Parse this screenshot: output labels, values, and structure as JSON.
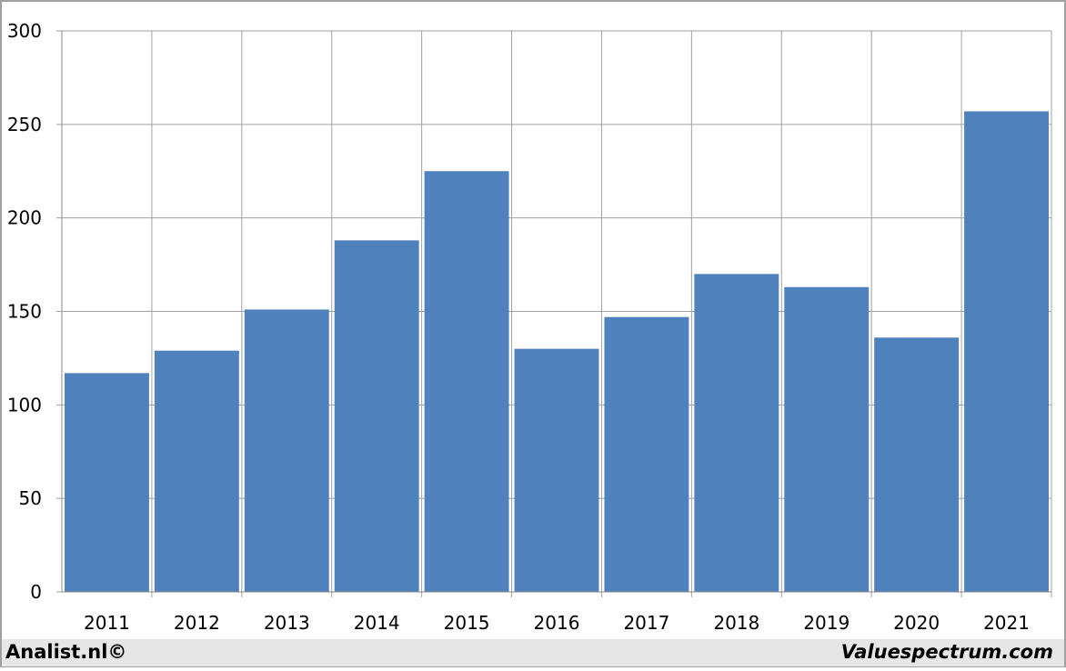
{
  "chart_data": {
    "type": "bar",
    "categories": [
      "2011",
      "2012",
      "2013",
      "2014",
      "2015",
      "2016",
      "2017",
      "2018",
      "2019",
      "2020",
      "2021"
    ],
    "values": [
      117,
      129,
      151,
      188,
      225,
      130,
      147,
      170,
      163,
      136,
      257
    ],
    "color": "#4f81bd",
    "ylim": [
      0,
      300
    ],
    "yticks": [
      0,
      50,
      100,
      150,
      200,
      250,
      300
    ],
    "grid": true,
    "source_left": "Analist.nl©",
    "source_right": "Valuespectrum.com"
  }
}
